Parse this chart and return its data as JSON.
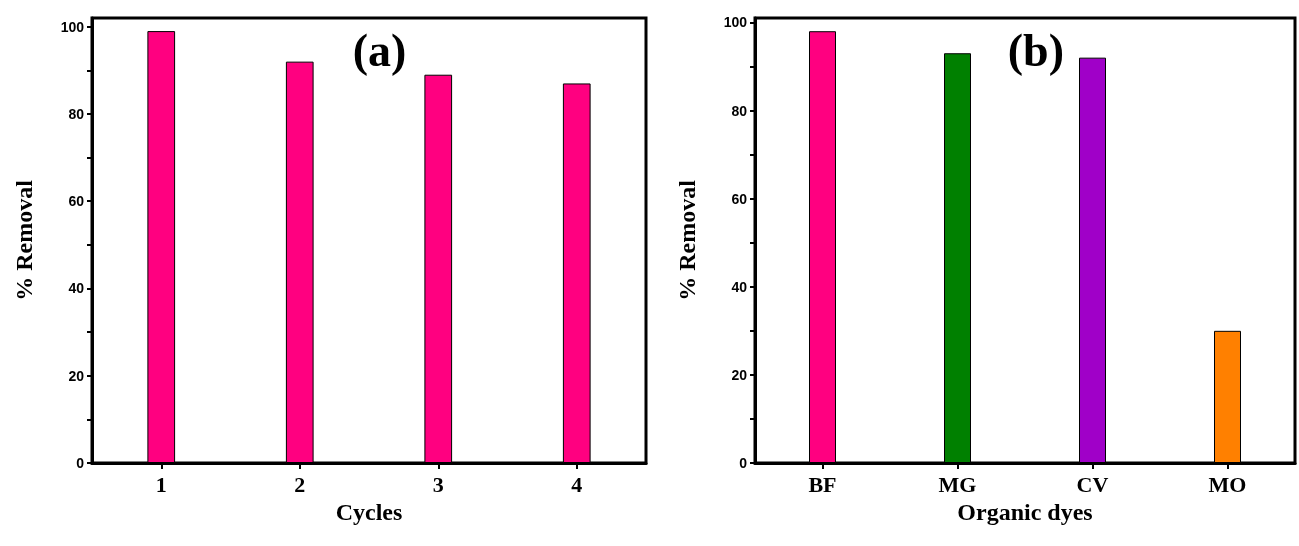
{
  "chart_data": [
    {
      "type": "bar",
      "title": "(a)",
      "xlabel": "Cycles",
      "ylabel": "% Removal",
      "categories": [
        "1",
        "2",
        "3",
        "4"
      ],
      "values": [
        99,
        92,
        89,
        87
      ],
      "color": "#ff0080",
      "ylim": [
        0,
        102
      ],
      "yticks": [
        0,
        {
          "value": 10,
          "label": null
        },
        20,
        {
          "value": 30,
          "label": null
        },
        40,
        {
          "value": 50,
          "label": null
        },
        60,
        {
          "value": 70,
          "label": null
        },
        80,
        {
          "value": 90,
          "label": null
        },
        100
      ],
      "grid": false
    },
    {
      "type": "bar",
      "title": "(b)",
      "xlabel": "Organic dyes",
      "ylabel": "% Removal",
      "categories": [
        "BF",
        "MG",
        "CV",
        "MO"
      ],
      "values": [
        98,
        93,
        92,
        30
      ],
      "colors": [
        "#ff0080",
        "#008000",
        "#a000c8",
        "#ff8000"
      ],
      "ylim": [
        0,
        101
      ],
      "yticks": [
        0,
        {
          "value": 10,
          "label": null
        },
        20,
        {
          "value": 30,
          "label": null
        },
        40,
        {
          "value": 50,
          "label": null
        },
        60,
        {
          "value": 70,
          "label": null
        },
        80,
        {
          "value": 90,
          "label": null
        },
        100
      ],
      "grid": false
    }
  ]
}
